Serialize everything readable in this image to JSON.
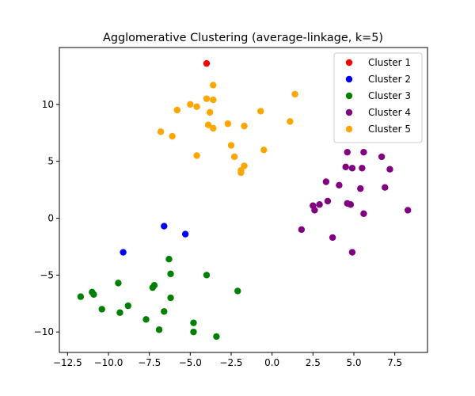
{
  "chart_data": {
    "type": "scatter",
    "title": "Agglomerative Clustering (average-linkage, k=5)",
    "xlabel": "",
    "ylabel": "",
    "xlim": [
      -13,
      9.5
    ],
    "ylim": [
      -11.8,
      15
    ],
    "xticks": [
      -12.5,
      -10.0,
      -7.5,
      -5.0,
      -2.5,
      0.0,
      2.5,
      5.0,
      7.5
    ],
    "xtick_labels": [
      "−12.5",
      "−10.0",
      "−7.5",
      "−5.0",
      "−2.5",
      "0.0",
      "2.5",
      "5.0",
      "7.5"
    ],
    "yticks": [
      -10,
      -5,
      0,
      5,
      10
    ],
    "ytick_labels": [
      "−10",
      "−5",
      "0",
      "5",
      "10"
    ],
    "grid": false,
    "legend_placement": "top-right",
    "series": [
      {
        "name": "Cluster 1",
        "color": "#ff0000",
        "points": [
          [
            -4.0,
            13.6
          ]
        ]
      },
      {
        "name": "Cluster 2",
        "color": "#0000ff",
        "points": [
          [
            -6.6,
            -0.7
          ],
          [
            -5.3,
            -1.4
          ],
          [
            -9.1,
            -3.0
          ]
        ]
      },
      {
        "name": "Cluster 3",
        "color": "#008000",
        "points": [
          [
            -6.3,
            -3.6
          ],
          [
            -4.0,
            -5.0
          ],
          [
            -6.2,
            -4.9
          ],
          [
            -9.4,
            -5.7
          ],
          [
            -7.2,
            -5.9
          ],
          [
            -7.3,
            -6.1
          ],
          [
            -2.1,
            -6.4
          ],
          [
            -11.0,
            -6.5
          ],
          [
            -10.9,
            -6.7
          ],
          [
            -11.7,
            -6.9
          ],
          [
            -6.2,
            -7.0
          ],
          [
            -8.8,
            -7.7
          ],
          [
            -10.4,
            -8.0
          ],
          [
            -6.6,
            -8.2
          ],
          [
            -9.3,
            -8.3
          ],
          [
            -7.7,
            -8.9
          ],
          [
            -4.8,
            -9.2
          ],
          [
            -6.9,
            -9.8
          ],
          [
            -4.8,
            -10.0
          ],
          [
            -3.4,
            -10.4
          ]
        ]
      },
      {
        "name": "Cluster 4",
        "color": "#800080",
        "points": [
          [
            4.6,
            5.8
          ],
          [
            5.6,
            5.8
          ],
          [
            6.7,
            5.4
          ],
          [
            4.5,
            4.5
          ],
          [
            4.9,
            4.4
          ],
          [
            5.5,
            4.4
          ],
          [
            7.2,
            4.3
          ],
          [
            3.3,
            3.2
          ],
          [
            4.1,
            2.9
          ],
          [
            5.4,
            2.6
          ],
          [
            6.9,
            2.7
          ],
          [
            3.4,
            1.5
          ],
          [
            4.6,
            1.3
          ],
          [
            4.8,
            1.2
          ],
          [
            2.9,
            1.2
          ],
          [
            2.5,
            1.1
          ],
          [
            2.6,
            0.7
          ],
          [
            8.3,
            0.7
          ],
          [
            5.6,
            0.4
          ],
          [
            1.8,
            -1.0
          ],
          [
            3.7,
            -1.7
          ],
          [
            4.9,
            -3.0
          ]
        ]
      },
      {
        "name": "Cluster 5",
        "color": "#ffa500",
        "points": [
          [
            -3.6,
            11.7
          ],
          [
            1.4,
            10.9
          ],
          [
            -4.0,
            10.5
          ],
          [
            -3.6,
            10.4
          ],
          [
            -5.0,
            10.0
          ],
          [
            -4.6,
            9.8
          ],
          [
            -5.8,
            9.5
          ],
          [
            -0.7,
            9.4
          ],
          [
            -3.8,
            9.3
          ],
          [
            1.1,
            8.5
          ],
          [
            -2.7,
            8.3
          ],
          [
            -3.9,
            8.2
          ],
          [
            -1.7,
            8.1
          ],
          [
            -3.6,
            7.9
          ],
          [
            -6.8,
            7.6
          ],
          [
            -6.1,
            7.2
          ],
          [
            -2.5,
            6.4
          ],
          [
            -0.5,
            6.0
          ],
          [
            -4.6,
            5.5
          ],
          [
            -2.3,
            5.4
          ],
          [
            -1.7,
            4.6
          ],
          [
            -1.9,
            4.2
          ],
          [
            -1.9,
            4.0
          ]
        ]
      }
    ]
  }
}
